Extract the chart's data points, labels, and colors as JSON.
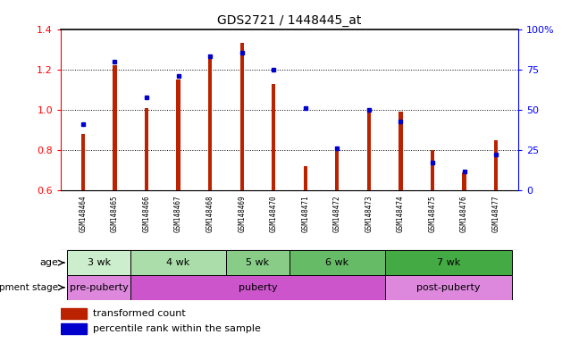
{
  "title": "GDS2721 / 1448445_at",
  "samples": [
    "GSM148464",
    "GSM148465",
    "GSM148466",
    "GSM148467",
    "GSM148468",
    "GSM148469",
    "GSM148470",
    "GSM148471",
    "GSM148472",
    "GSM148473",
    "GSM148474",
    "GSM148475",
    "GSM148476",
    "GSM148477"
  ],
  "red_values": [
    0.88,
    1.22,
    1.01,
    1.15,
    1.27,
    1.33,
    1.13,
    0.72,
    0.8,
    0.99,
    0.99,
    0.8,
    0.69,
    0.85
  ],
  "blue_values": [
    0.93,
    1.24,
    1.06,
    1.17,
    1.265,
    1.285,
    1.2,
    1.01,
    0.81,
    1.0,
    0.94,
    0.74,
    0.695,
    0.78
  ],
  "ylim": [
    0.6,
    1.4
  ],
  "y2lim": [
    0,
    100
  ],
  "y_ticks": [
    0.6,
    0.8,
    1.0,
    1.2,
    1.4
  ],
  "y2_ticks": [
    0,
    25,
    50,
    75,
    100
  ],
  "y2_labels": [
    "0",
    "25",
    "50",
    "75",
    "100%"
  ],
  "age_groups": [
    {
      "label": "3 wk",
      "start": 0,
      "end": 2
    },
    {
      "label": "4 wk",
      "start": 2,
      "end": 5
    },
    {
      "label": "5 wk",
      "start": 5,
      "end": 7
    },
    {
      "label": "6 wk",
      "start": 7,
      "end": 10
    },
    {
      "label": "7 wk",
      "start": 10,
      "end": 14
    }
  ],
  "age_colors": [
    "#cceecc",
    "#aaddaa",
    "#88cc88",
    "#66bb66",
    "#44aa44"
  ],
  "dev_groups": [
    {
      "label": "pre-puberty",
      "start": 0,
      "end": 2
    },
    {
      "label": "puberty",
      "start": 2,
      "end": 10
    },
    {
      "label": "post-puberty",
      "start": 10,
      "end": 14
    }
  ],
  "dev_colors": [
    "#dd88dd",
    "#cc55cc",
    "#dd88dd"
  ],
  "legend_red": "transformed count",
  "legend_blue": "percentile rank within the sample",
  "bar_color": "#bb2200",
  "dot_color": "#0000cc",
  "sample_bg_color": "#cccccc"
}
